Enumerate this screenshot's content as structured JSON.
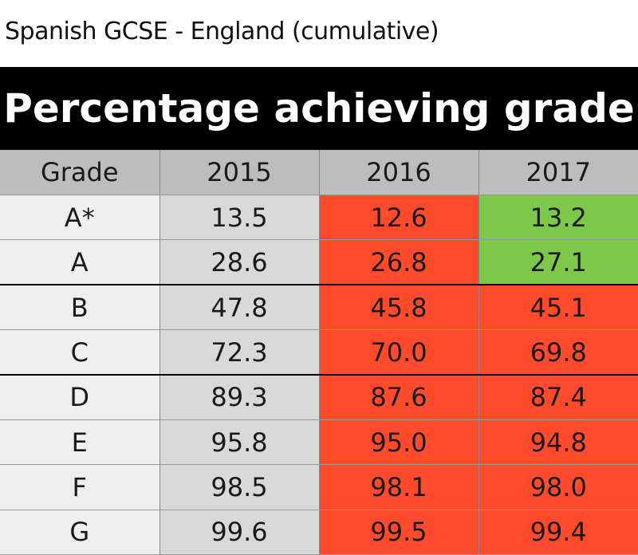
{
  "caption": "Spanish GCSE - England (cumulative)",
  "title": "Percentage achieving grade",
  "colors": {
    "decrease": "#ff4a2b",
    "increase": "#7dc84a",
    "header": "#bdbdbd",
    "banner": "#000000"
  },
  "chart_data": {
    "type": "table",
    "title": "Percentage achieving grade",
    "columns": [
      "Grade",
      "2015",
      "2016",
      "2017"
    ],
    "rows": [
      {
        "grade": "A*",
        "y2015": "13.5",
        "y2016": "12.6",
        "y2017": "13.2",
        "c2016": "red",
        "c2017": "green"
      },
      {
        "grade": "A",
        "y2015": "28.6",
        "y2016": "26.8",
        "y2017": "27.1",
        "c2016": "red",
        "c2017": "green"
      },
      {
        "grade": "B",
        "y2015": "47.8",
        "y2016": "45.8",
        "y2017": "45.1",
        "c2016": "red",
        "c2017": "red"
      },
      {
        "grade": "C",
        "y2015": "72.3",
        "y2016": "70.0",
        "y2017": "69.8",
        "c2016": "red",
        "c2017": "red"
      },
      {
        "grade": "D",
        "y2015": "89.3",
        "y2016": "87.6",
        "y2017": "87.4",
        "c2016": "red",
        "c2017": "red"
      },
      {
        "grade": "E",
        "y2015": "95.8",
        "y2016": "95.0",
        "y2017": "94.8",
        "c2016": "red",
        "c2017": "red"
      },
      {
        "grade": "F",
        "y2015": "98.5",
        "y2016": "98.1",
        "y2017": "98.0",
        "c2016": "red",
        "c2017": "red"
      },
      {
        "grade": "G",
        "y2015": "99.6",
        "y2016": "99.5",
        "y2017": "99.4",
        "c2016": "red",
        "c2017": "red"
      }
    ]
  }
}
